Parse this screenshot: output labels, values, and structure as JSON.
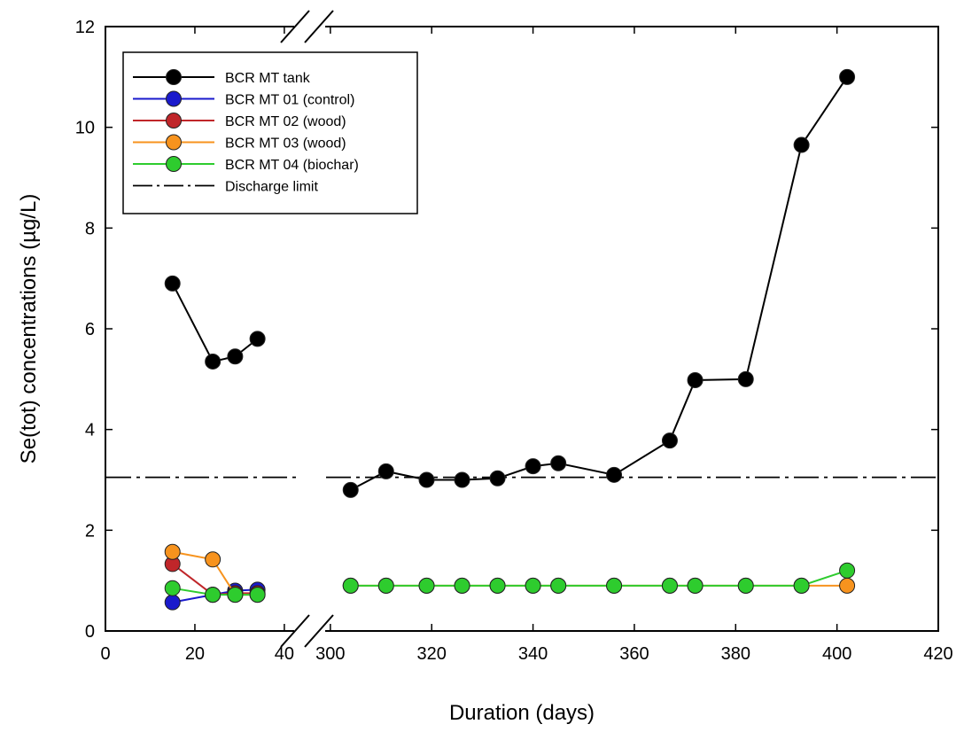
{
  "chart_data": {
    "type": "line",
    "xlabel": "Duration (days)",
    "ylabel": "Se(tot) concentrations (µg/L)",
    "ylim": [
      0,
      12
    ],
    "yticks": [
      0,
      2,
      4,
      6,
      8,
      10,
      12
    ],
    "x_segments": [
      {
        "range": [
          0,
          42
        ],
        "ticks": [
          0,
          20,
          40
        ]
      },
      {
        "range": [
          296,
          420
        ],
        "ticks": [
          300,
          320,
          340,
          360,
          380,
          400,
          420
        ]
      }
    ],
    "axis_break": true,
    "legend_position": "top-left",
    "series": [
      {
        "name": "BCR MT tank",
        "color": "#000000",
        "segments": [
          {
            "x": [
              15,
              24,
              29,
              34
            ],
            "y": [
              6.9,
              5.35,
              5.45,
              5.8
            ]
          },
          {
            "x": [
              304,
              311,
              319,
              326,
              333,
              340,
              345,
              356,
              367,
              372,
              382,
              393,
              402
            ],
            "y": [
              2.8,
              3.17,
              3.0,
              3.0,
              3.03,
              3.27,
              3.33,
              3.1,
              3.78,
              4.98,
              5.0,
              9.65,
              11.0
            ]
          }
        ]
      },
      {
        "name": "BCR MT 01 (control)",
        "color": "#1a1acc",
        "segments": [
          {
            "x": [
              15,
              24,
              29,
              34
            ],
            "y": [
              0.57,
              0.72,
              0.8,
              0.82
            ]
          }
        ]
      },
      {
        "name": "BCR MT 02 (wood)",
        "color": "#c0262a",
        "segments": [
          {
            "x": [
              15,
              24,
              29,
              34
            ],
            "y": [
              1.33,
              0.72,
              0.75,
              0.75
            ]
          }
        ]
      },
      {
        "name": "BCR MT 03 (wood)",
        "color": "#f7931e",
        "segments": [
          {
            "x": [
              15,
              24,
              29,
              34
            ],
            "y": [
              1.57,
              1.42,
              0.72,
              0.72
            ]
          },
          {
            "x": [
              304,
              311,
              319,
              326,
              333,
              340,
              345,
              356,
              367,
              372,
              382,
              393,
              402
            ],
            "y": [
              0.9,
              0.9,
              0.9,
              0.9,
              0.9,
              0.9,
              0.9,
              0.9,
              0.9,
              0.9,
              0.9,
              0.9,
              0.9
            ]
          }
        ]
      },
      {
        "name": "BCR MT 04 (biochar)",
        "color": "#2ecc2e",
        "segments": [
          {
            "x": [
              15,
              24,
              29,
              34
            ],
            "y": [
              0.85,
              0.72,
              0.72,
              0.72
            ]
          },
          {
            "x": [
              304,
              311,
              319,
              326,
              333,
              340,
              345,
              356,
              367,
              372,
              382,
              393,
              402
            ],
            "y": [
              0.9,
              0.9,
              0.9,
              0.9,
              0.9,
              0.9,
              0.9,
              0.9,
              0.9,
              0.9,
              0.9,
              0.9,
              1.2
            ]
          }
        ]
      }
    ],
    "reference_lines": [
      {
        "name": "Discharge limit",
        "y": 3.05,
        "style": "dash-dot",
        "color": "#000000"
      }
    ]
  }
}
